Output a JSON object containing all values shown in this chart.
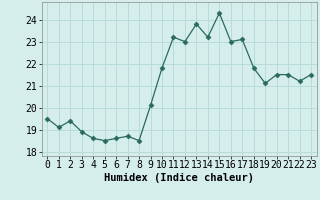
{
  "x": [
    0,
    1,
    2,
    3,
    4,
    5,
    6,
    7,
    8,
    9,
    10,
    11,
    12,
    13,
    14,
    15,
    16,
    17,
    18,
    19,
    20,
    21,
    22,
    23
  ],
  "y": [
    19.5,
    19.1,
    19.4,
    18.9,
    18.6,
    18.5,
    18.6,
    18.7,
    18.5,
    20.1,
    21.8,
    23.2,
    23.0,
    23.8,
    23.2,
    24.3,
    23.0,
    23.1,
    21.8,
    21.1,
    21.5,
    21.5,
    21.2,
    21.5
  ],
  "line_color": "#2a6b5e",
  "marker": "D",
  "marker_size": 2.5,
  "bg_color": "#d5eeeb",
  "grid_color": "#b8ddd9",
  "xlabel": "Humidex (Indice chaleur)",
  "ylim": [
    17.8,
    24.8
  ],
  "yticks": [
    18,
    19,
    20,
    21,
    22,
    23,
    24
  ],
  "xticks": [
    0,
    1,
    2,
    3,
    4,
    5,
    6,
    7,
    8,
    9,
    10,
    11,
    12,
    13,
    14,
    15,
    16,
    17,
    18,
    19,
    20,
    21,
    22,
    23
  ],
  "xlabel_fontsize": 7.5,
  "tick_fontsize": 7
}
